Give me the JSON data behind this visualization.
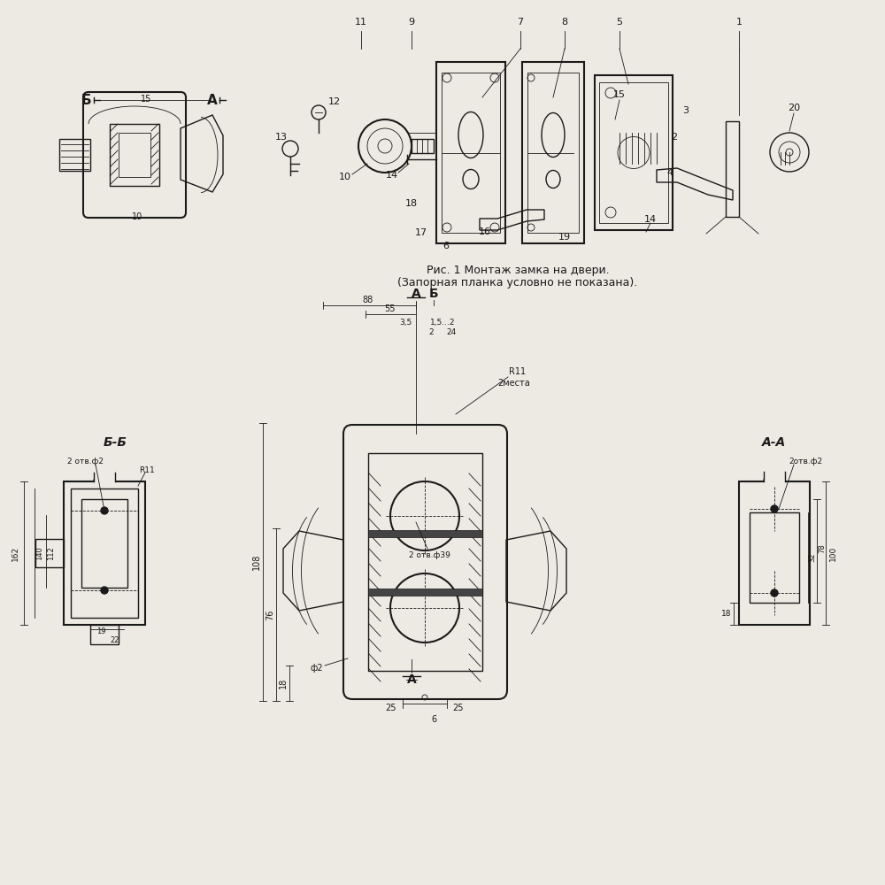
{
  "bg_color": "#ede9e3",
  "line_color": "#1a1a1a",
  "caption1": "Рис. 1 Монтаж замка на двери.",
  "caption2": "(Запорная планка условно не показана).",
  "section_bb": "Б-Б",
  "section_aa": "А-А"
}
